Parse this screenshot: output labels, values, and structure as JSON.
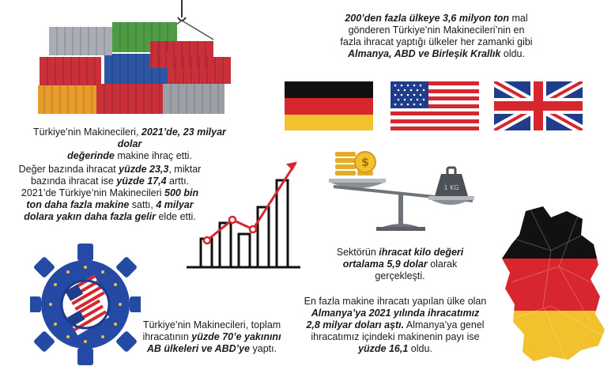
{
  "blocks": {
    "b1": [
      [
        "Türkiye’nin Makinecileri, ",
        "2021’de, 23 milyar dolar",
        ""
      ],
      [
        "",
        "değerinde",
        " makine ihraç etti."
      ]
    ],
    "b2": [
      [
        "Değer bazında ihracat ",
        "yüzde 23,3",
        ", miktar"
      ],
      [
        "bazında ihracat ise ",
        "yüzde 17,4",
        " arttı."
      ],
      [
        "2021’de Türkiye’nin Makinecileri ",
        "500 bin",
        ""
      ],
      [
        "",
        "ton daha fazla makine",
        " sattı, "
      ],
      [
        "",
        "dolara yakın daha fazla gelir",
        " elde etti."
      ]
    ],
    "b2_extra": "4 milyar",
    "b3": [
      [
        "",
        "200’den fazla ülkeye 3,6 milyon ton",
        " mal"
      ],
      [
        "gönderen Türkiye’nin Makinecileri’nin en",
        "",
        ""
      ],
      [
        "fazla ihracat yaptığı ülkeler her zamanki gibi",
        "",
        ""
      ],
      [
        "",
        "Almanya, ABD ve Birleşik Krallık",
        " oldu."
      ]
    ],
    "b4": [
      [
        "Sektörün ",
        "ihracat kilo değeri",
        ""
      ],
      [
        "",
        "ortalama 5,9 dolar",
        " olarak"
      ],
      [
        "gerçekleşti.",
        "",
        ""
      ]
    ],
    "b5": [
      [
        "En fazla makine ihracatı yapılan ülke olan",
        "",
        ""
      ],
      [
        "",
        "Almanya’ya 2021 yılında ihracatımız",
        ""
      ],
      [
        "",
        "2,8 milyar doları aştı.",
        " Almanya’ya genel"
      ],
      [
        "ihracatımız içindeki makinenin payı ise",
        "",
        ""
      ],
      [
        "",
        "yüzde 16,1",
        " oldu."
      ]
    ],
    "b6": [
      [
        "Türkiye’nin Makinecileri, toplam",
        "",
        ""
      ],
      [
        "ihracatının ",
        "yüzde 70’e yakınını",
        ""
      ],
      [
        "",
        "AB ülkeleri ve ABD’ye",
        " yaptı."
      ]
    ]
  },
  "weight_label": "1 KG",
  "colors": {
    "red": "#d7262e",
    "gold": "#f2c12e",
    "black": "#111111",
    "navy": "#1f3d8a",
    "eu_blue": "#244aa5",
    "container_red": "#c9303a",
    "container_green": "#4f9b45",
    "container_blue": "#2c55a3",
    "container_orange": "#e79b2a",
    "container_grey": "#9aa0a6"
  },
  "icons": [
    "containers-illustration",
    "germany-flag-icon",
    "usa-flag-icon",
    "uk-flag-icon",
    "growth-chart-icon",
    "balance-scale-icon",
    "germany-map-icon",
    "gear-flags-icon"
  ]
}
